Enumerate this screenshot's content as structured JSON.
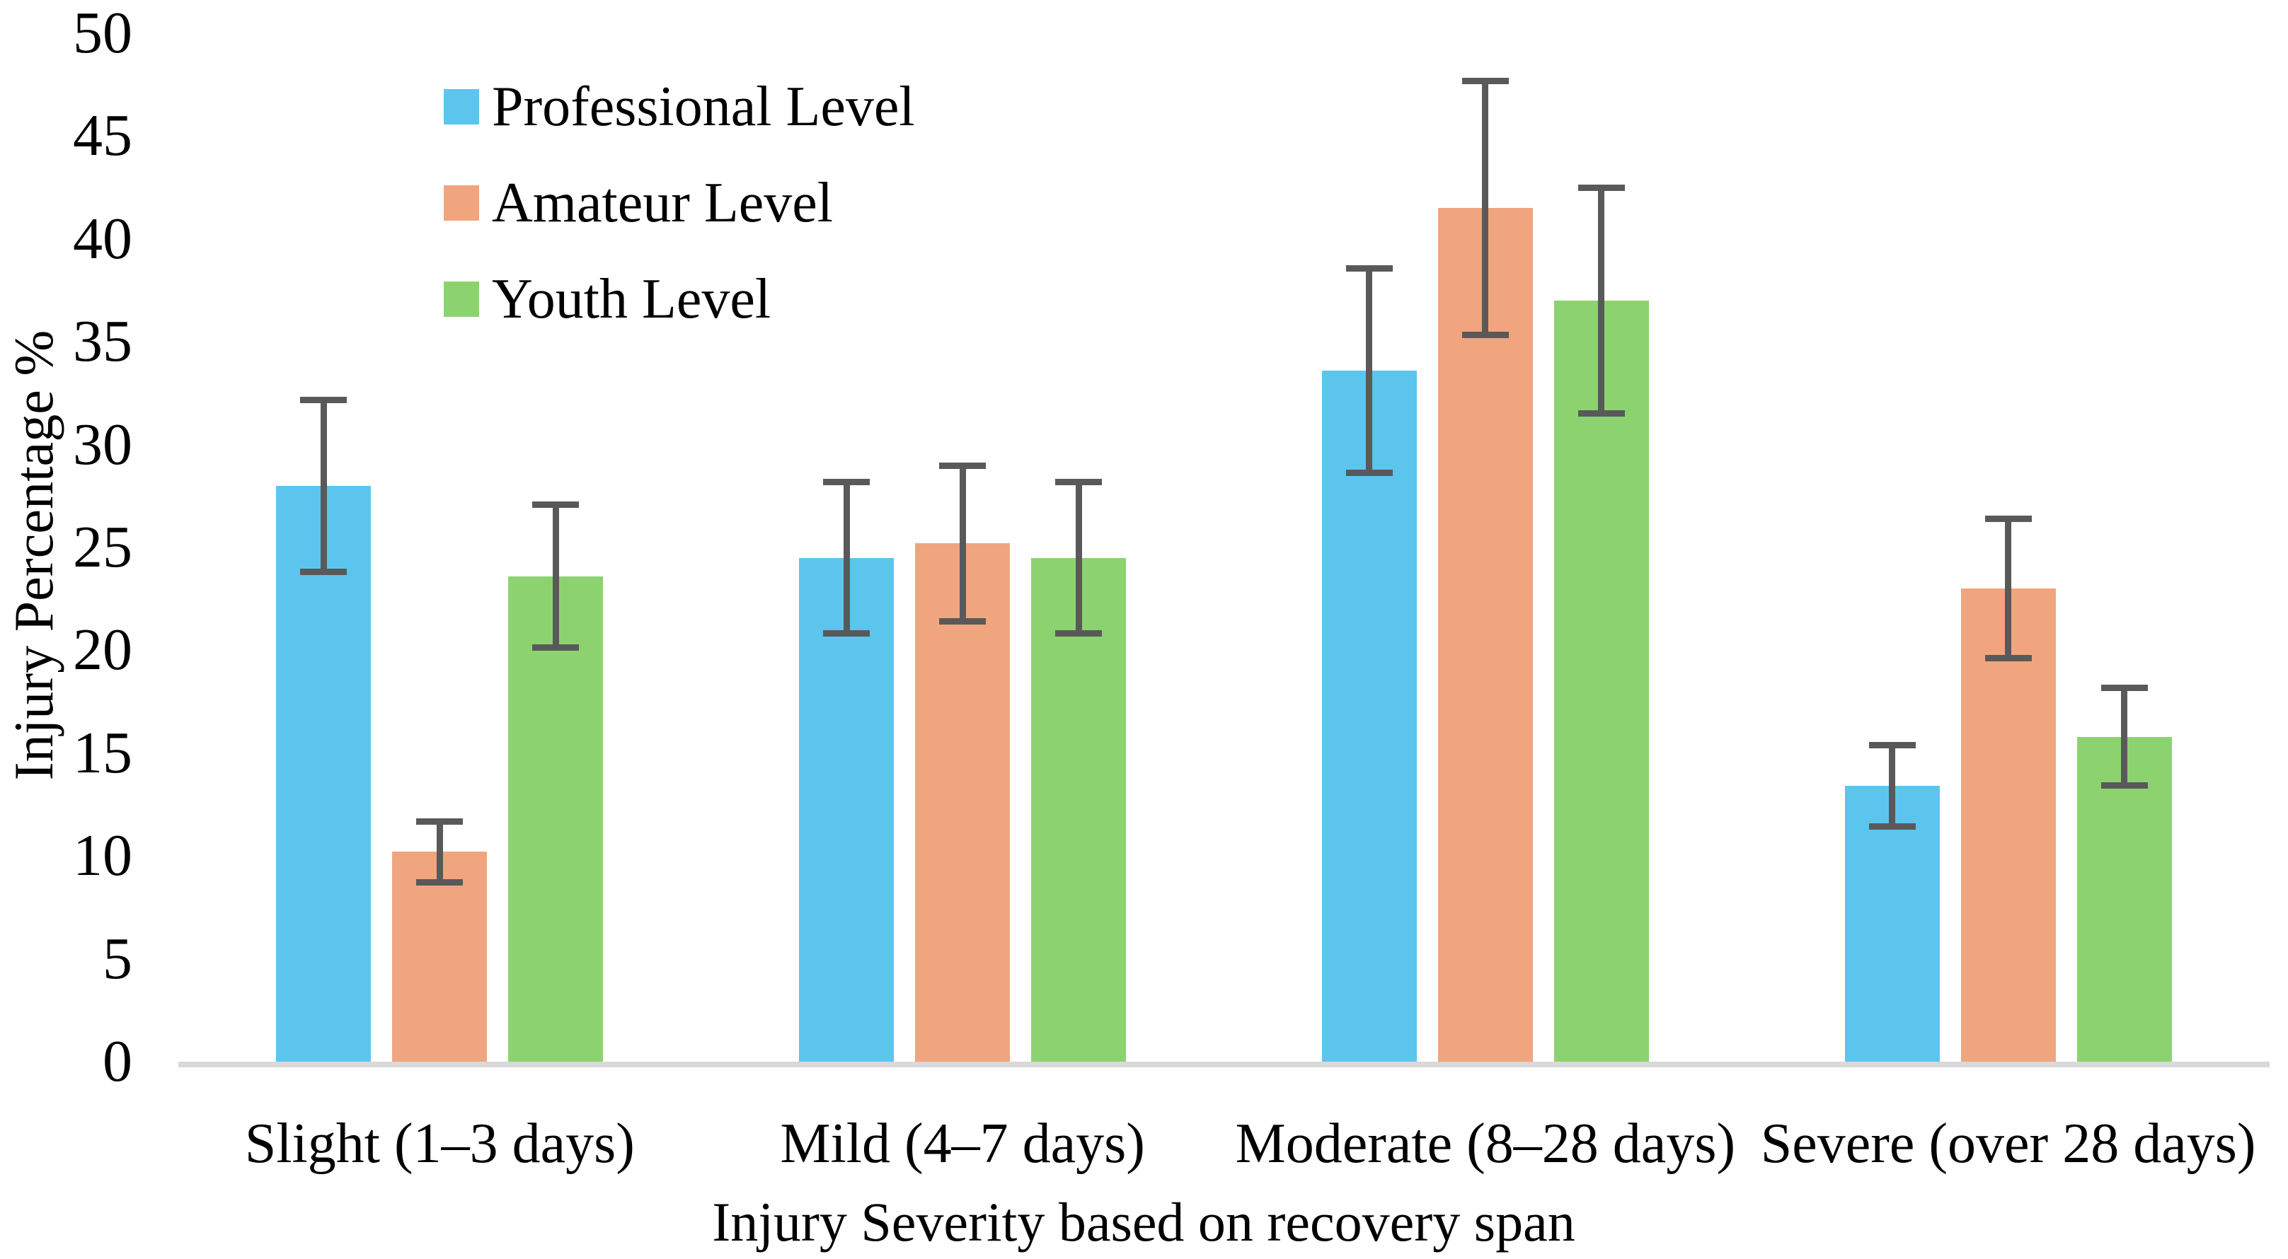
{
  "chart_data": {
    "type": "bar",
    "title": "",
    "categories": [
      "Slight (1–3 days)",
      "Mild (4–7 days)",
      "Moderate (8–28 days)",
      "Severe (over 28 days)"
    ],
    "series": [
      {
        "name": "Professional Level",
        "color": "#5CC5ED",
        "values": [
          28.0,
          24.5,
          33.6,
          13.4
        ],
        "errors": [
          4.2,
          3.7,
          5.0,
          2.0
        ]
      },
      {
        "name": "Amateur Level",
        "color": "#F0A57E",
        "values": [
          10.2,
          25.2,
          41.5,
          23.0
        ],
        "errors": [
          1.5,
          3.8,
          6.2,
          3.4
        ]
      },
      {
        "name": "Youth Level",
        "color": "#8CD36F",
        "values": [
          23.6,
          24.5,
          37.0,
          15.8
        ],
        "errors": [
          3.5,
          3.7,
          5.5,
          2.4
        ]
      }
    ],
    "xlabel": "Injury Severity based on recovery span",
    "ylabel": "Injury Percentage %",
    "ylim": [
      0,
      50
    ],
    "yticks": [
      0,
      5,
      10,
      15,
      20,
      25,
      30,
      35,
      40,
      45,
      50
    ],
    "grid": false,
    "legend_position": "top-left-inside",
    "colors": {
      "error_bar": "#595959",
      "axis_line": "#D9D9D9",
      "text": "#000000",
      "background": "#FFFFFF"
    }
  }
}
